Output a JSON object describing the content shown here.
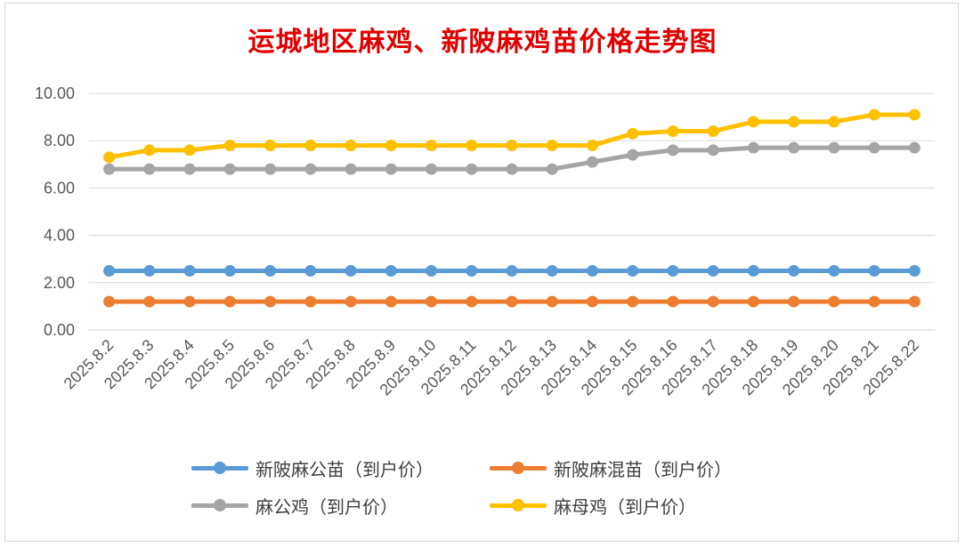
{
  "chart_data": {
    "type": "line",
    "title": "运城地区麻鸡、新陂麻鸡苗价格走势图",
    "categories": [
      "2025.8.2",
      "2025.8.3",
      "2025.8.4",
      "2025.8.5",
      "2025.8.6",
      "2025.8.7",
      "2025.8.8",
      "2025.8.9",
      "2025.8.10",
      "2025.8.11",
      "2025.8.12",
      "2025.8.13",
      "2025.8.14",
      "2025.8.15",
      "2025.8.16",
      "2025.8.17",
      "2025.8.18",
      "2025.8.19",
      "2025.8.20",
      "2025.8.21",
      "2025.8.22"
    ],
    "series": [
      {
        "name": "新陂麻公苗（到户价）",
        "color": "#5b9bd5",
        "values": [
          2.5,
          2.5,
          2.5,
          2.5,
          2.5,
          2.5,
          2.5,
          2.5,
          2.5,
          2.5,
          2.5,
          2.5,
          2.5,
          2.5,
          2.5,
          2.5,
          2.5,
          2.5,
          2.5,
          2.5,
          2.5
        ]
      },
      {
        "name": "新陂麻混苗（到户价）",
        "color": "#ed7d31",
        "values": [
          1.2,
          1.2,
          1.2,
          1.2,
          1.2,
          1.2,
          1.2,
          1.2,
          1.2,
          1.2,
          1.2,
          1.2,
          1.2,
          1.2,
          1.2,
          1.2,
          1.2,
          1.2,
          1.2,
          1.2,
          1.2
        ]
      },
      {
        "name": "麻公鸡（到户价）",
        "color": "#a5a5a5",
        "values": [
          6.8,
          6.8,
          6.8,
          6.8,
          6.8,
          6.8,
          6.8,
          6.8,
          6.8,
          6.8,
          6.8,
          6.8,
          7.1,
          7.4,
          7.6,
          7.6,
          7.7,
          7.7,
          7.7,
          7.7,
          7.7
        ]
      },
      {
        "name": "麻母鸡（到户价）",
        "color": "#ffc000",
        "values": [
          7.3,
          7.6,
          7.6,
          7.8,
          7.8,
          7.8,
          7.8,
          7.8,
          7.8,
          7.8,
          7.8,
          7.8,
          7.8,
          8.3,
          8.4,
          8.4,
          8.8,
          8.8,
          8.8,
          9.1,
          9.1
        ]
      }
    ],
    "ylim": [
      0,
      10
    ],
    "yticks": [
      "0.00",
      "2.00",
      "4.00",
      "6.00",
      "8.00",
      "10.00"
    ],
    "grid": true,
    "legend_position": "bottom"
  }
}
